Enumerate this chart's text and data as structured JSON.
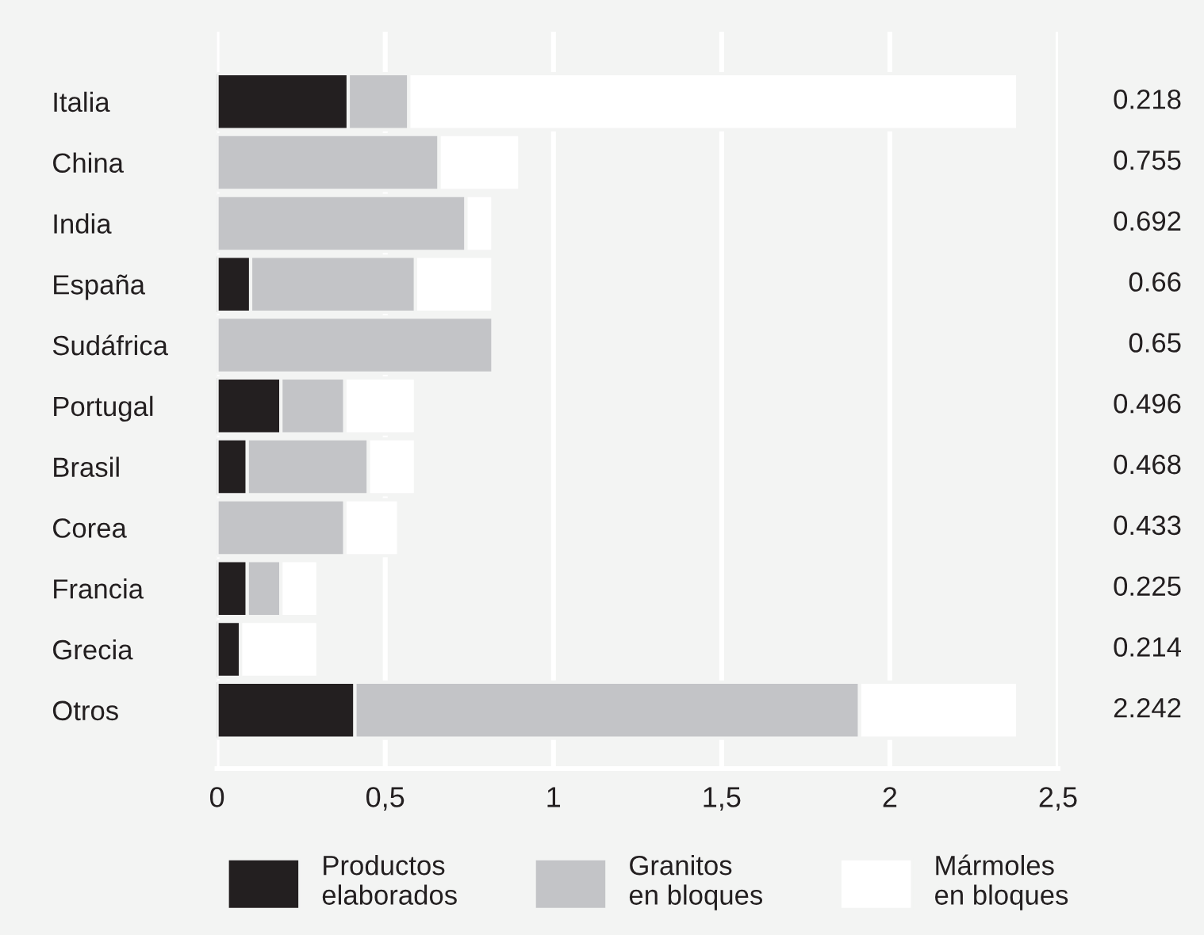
{
  "chart_data": {
    "type": "bar",
    "orientation": "horizontal",
    "stacked": true,
    "categories": [
      "Italia",
      "China",
      "India",
      "España",
      "Sudáfrica",
      "Portugal",
      "Brasil",
      "Corea",
      "Francia",
      "Grecia",
      "Otros"
    ],
    "series": [
      {
        "name": "Productos\nelaborados",
        "color": "#231f20",
        "values": [
          0.39,
          0,
          0,
          0.1,
          0,
          0.19,
          0.09,
          0,
          0.09,
          0.07,
          0.41
        ]
      },
      {
        "name": "Granitos\nen bloques",
        "color": "#c3c4c7",
        "values": [
          0.18,
          0.66,
          0.74,
          0.49,
          0.82,
          0.19,
          0.36,
          0.38,
          0.1,
          0,
          1.5
        ]
      },
      {
        "name": "Mármoles\nen bloques",
        "color": "#ffffff",
        "values": [
          1.81,
          0.24,
          0.08,
          0.23,
          0,
          0.21,
          0.14,
          0.16,
          0.11,
          0.23,
          0.47
        ]
      }
    ],
    "annotations": [
      "0.218",
      "0.755",
      "0.692",
      "0.66",
      "0.65",
      "0.496",
      "0.468",
      "0.433",
      "0.225",
      "0.214",
      "2.242"
    ],
    "xlim": [
      0,
      2.5
    ],
    "xticks": [
      0,
      {
        "value": 0.5,
        "label": "0,5"
      },
      1,
      {
        "value": 1.5,
        "label": "1,5"
      },
      2,
      {
        "value": 2.5,
        "label": "2,5"
      }
    ],
    "grid": "x",
    "legend": "bottom"
  }
}
